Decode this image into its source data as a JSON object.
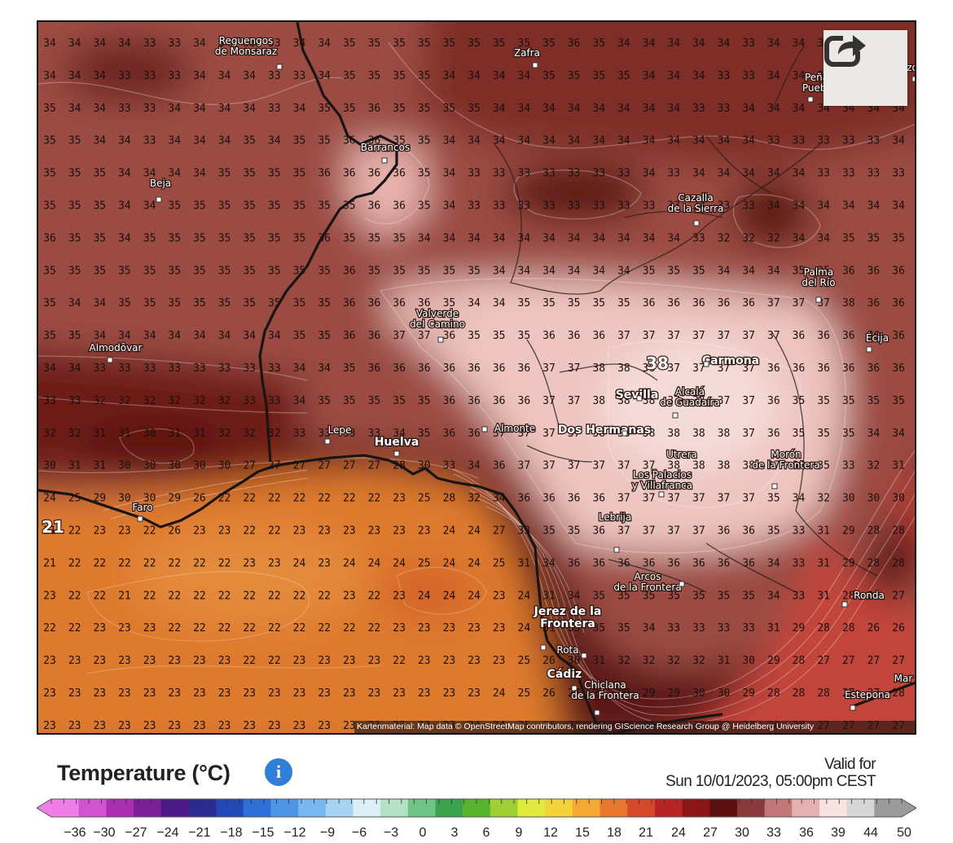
{
  "map": {
    "rows": [
      "34 34 34 34 33 33 34 34 33 33 34 34 35 35 35 35 35 35 35 35 35 36 35 34 34 34 34 34 33 34 34 34 34 34 34 34",
      "34 34 34 33 33 33 34 34 34 33 33 34 35 35 35 35 34 34 34 34 35 35 35 35 34 34 34 33 33 34 34 34 34 34 34 34",
      "35 34 34 33 33 34 34 34 34 33 34 35 35 36 35 35 35 35 34 34 34 34 34 34 34 34 33 33 34 34 34 34 34 34 34 34",
      "35 35 34 34 33 34 34 34 35 34 35 35 36 36 35 35 34 34 34 34 34 34 34 34 34 34 34 34 34 33 33 33 33 33 34 34",
      "35 35 35 34 34 34 34 35 35 35 35 36 36 36 36 35 34 33 33 33 33 33 33 33 34 33 34 34 34 34 34 33 33 33 33 34",
      "35 35 35 34 34 35 35 35 35 35 35 35 35 36 36 35 34 33 33 33 33 33 33 33 33 33 33 33 33 34 34 34 34 34 34 34",
      "36 35 35 34 35 35 35 35 35 35 35 36 35 35 35 34 34 34 34 34 34 34 34 34 34 34 33 32 32 32 34 34 35 35 35 35",
      "35 35 35 35 35 35 35 35 35 35 35 35 36 35 35 35 35 35 34 34 34 34 34 34 35 35 35 34 34 34 35 35 36 36 36 36",
      "35 34 34 35 35 35 35 35 35 35 35 35 36 36 36 36 35 34 34 35 35 35 35 35 36 36 36 36 36 37 37 37 38 36 36 36",
      "35 35 34 34 34 34 34 34 34 34 35 35 36 36 37 37 36 35 35 35 36 36 36 37 37 37 37 37 37 37 36 36 36 36 36 36",
      "34 34 33 33 33 33 33 33 33 33 34 34 35 36 36 36 36 36 36 36 37 37 38 38 38 37 37 37 37 36 36 36 36 36 36 36",
      "33 33 32 32 32 32 32 32 33 33 34 35 35 35 35 35 36 36 36 36 37 37 38 38 38 37 37 37 37 36 35 35 35 35 35 35",
      "32 32 31 31 30 31 31 32 32 32 33 33 33 33 34 35 36 36 37 37 37 37 38 38 38 38 38 38 37 36 35 35 35 34 34 34",
      "30 31 31 30 30 30 30 30 27 27 27 27 27 27 28 30 33 34 36 37 37 37 37 37 37 38 38 38 38 37 36 35 33 32 31 31",
      "24 25 29 30 30 29 26 22 22 22 22 22 22 22 23 25 28 32 34 36 36 36 36 37 37 37 37 37 37 35 34 32 30 30 30 30",
      "21 22 23 23 22 26 23 23 22 22 23 23 23 23 23 23 24 24 27 33 35 35 36 37 37 37 37 36 36 35 33 31 29 28 28 28",
      "21 22 22 22 22 22 22 22 23 23 24 23 24 24 24 25 24 24 25 31 34 36 36 36 36 36 36 36 36 34 33 31 29 28 28 28",
      "23 22 22 21 22 22 22 22 22 22 22 22 23 22 23 24 24 24 23 24 31 34 35 35 35 35 35 35 35 34 33 31 28 28 27 26",
      "22 22 23 23 23 22 22 22 22 22 22 22 22 22 23 23 23 23 23 24 31 35 35 35 34 33 33 33 33 31 29 28 28 26 26 26",
      "23 23 23 23 23 23 23 23 22 22 23 23 23 23 22 23 23 23 23 25 26 30 31 32 32 32 32 31 30 29 28 27 27 27 27 27",
      "23 23 23 23 23 23 23 23 23 23 23 23 23 23 23 23 23 23 24 25 26 27 27 29 29 29 30 30 29 28 28 28 27 27 28 28",
      "23 23 23 23 23 23 23 23 23 23 23 23 23 23 23 23 23 24 24 25 26 27 30 30 30 30 30 30 28 28 28 27 27 27 27 27"
    ],
    "cities": [
      {
        "name": "Reguengos\nde Monsaraz"
      },
      {
        "name": "Zafra"
      },
      {
        "name": "Peñar\nPueblo"
      },
      {
        "name": "Barrancos"
      },
      {
        "name": "Beja"
      },
      {
        "name": "Cazalla\nde la Sierra"
      },
      {
        "name": "Palma\ndel Río"
      },
      {
        "name": "Valverde\ndel Camino"
      },
      {
        "name": "Almodôvar"
      },
      {
        "name": "Carmona"
      },
      {
        "name": "Écija"
      },
      {
        "name": "Sevilla"
      },
      {
        "name": "Alcalá\nde Guadaíra"
      },
      {
        "name": "Lepe"
      },
      {
        "name": "Huelva"
      },
      {
        "name": "Almonte"
      },
      {
        "name": "Dos Hermanas"
      },
      {
        "name": "Utrera"
      },
      {
        "name": "Morón\nde la Frontera"
      },
      {
        "name": "Los Palacios\ny Villafranca"
      },
      {
        "name": "Faro"
      },
      {
        "name": "Lebrija"
      },
      {
        "name": "Arcos\nde la Frontera"
      },
      {
        "name": "Ronda"
      },
      {
        "name": "Jerez de la\nFrontera"
      },
      {
        "name": "Rota"
      },
      {
        "name": "Cádiz"
      },
      {
        "name": "Chiclana\nde la Frontera"
      },
      {
        "name": "Estepona"
      },
      {
        "name": "Mar"
      },
      {
        "name": "Pozo"
      }
    ],
    "highlight": [
      {
        "value": "38"
      },
      {
        "value": "21"
      }
    ],
    "attribution": "Kartenmaterial: Map data © OpenStreetMap contributors, rendering GIScience Research Group @ Heidelberg University",
    "share_icon": "share-icon"
  },
  "legend": {
    "title": "Temperature (°C)",
    "info_icon": "info-icon",
    "valid_label": "Valid for",
    "valid_time": "Sun 10/01/2023, 05:00pm CEST",
    "ticks": [
      "−36",
      "−30",
      "−27",
      "−24",
      "−21",
      "−18",
      "−15",
      "−12",
      "−9",
      "−6",
      "−3",
      "0",
      "3",
      "6",
      "9",
      "12",
      "15",
      "18",
      "21",
      "24",
      "27",
      "30",
      "33",
      "36",
      "39",
      "44",
      "50"
    ]
  }
}
